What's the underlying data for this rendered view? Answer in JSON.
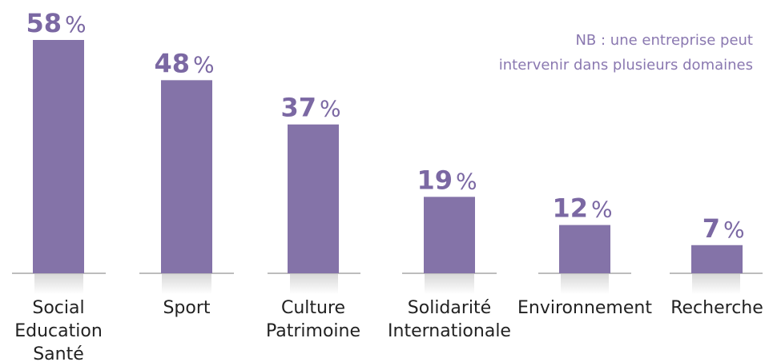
{
  "chart_data": {
    "type": "bar",
    "annotations": [
      "NB : une entreprise peut",
      "intervenir dans plusieurs domaines"
    ],
    "categories": [
      [
        "Social",
        "Education",
        "Santé"
      ],
      [
        "Sport"
      ],
      [
        "Culture",
        "Patrimoine"
      ],
      [
        "Solidarité",
        "Internationale"
      ],
      [
        "Environnement"
      ],
      [
        "Recherche"
      ]
    ],
    "values": [
      58,
      48,
      37,
      19,
      12,
      7
    ],
    "value_unit": "%",
    "color": "#8473a8",
    "ylim": [
      0,
      58
    ]
  }
}
